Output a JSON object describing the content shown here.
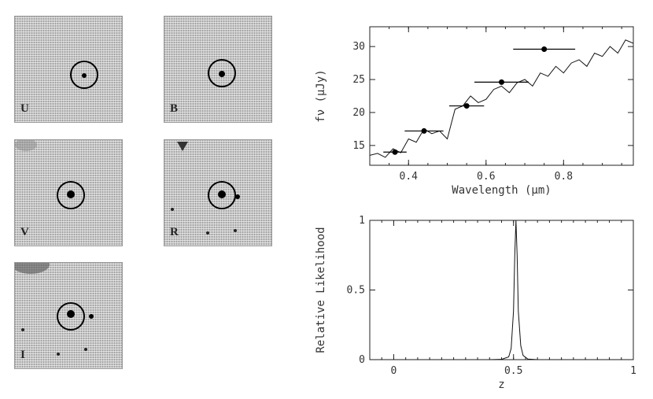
{
  "stamps": [
    {
      "band": "U"
    },
    {
      "band": "B"
    },
    {
      "band": "V"
    },
    {
      "band": "R"
    },
    {
      "band": "I"
    }
  ],
  "chart_data": [
    {
      "type": "line",
      "title": "",
      "xlabel": "Wavelength (μm)",
      "ylabel": "fν (μJy)",
      "xlim": [
        0.3,
        0.98
      ],
      "ylim": [
        12,
        33
      ],
      "xticks": [
        0.4,
        0.6,
        0.8
      ],
      "xtick_labels": [
        "0.4",
        "0.6",
        "0.8"
      ],
      "yticks": [
        15,
        20,
        25,
        30
      ],
      "ytick_labels": [
        "15",
        "20",
        "25",
        "30"
      ],
      "series": [
        {
          "name": "model spectrum",
          "x": [
            0.3,
            0.32,
            0.34,
            0.36,
            0.38,
            0.4,
            0.42,
            0.44,
            0.46,
            0.48,
            0.5,
            0.52,
            0.54,
            0.56,
            0.58,
            0.6,
            0.62,
            0.64,
            0.66,
            0.68,
            0.7,
            0.72,
            0.74,
            0.76,
            0.78,
            0.8,
            0.82,
            0.84,
            0.86,
            0.88,
            0.9,
            0.92,
            0.94,
            0.96,
            0.98
          ],
          "y": [
            13.5,
            13.8,
            13.2,
            14.5,
            13.9,
            16.0,
            15.5,
            17.5,
            16.8,
            17.2,
            16.0,
            20.5,
            21.0,
            22.5,
            21.5,
            22.0,
            23.5,
            24.0,
            23.0,
            24.5,
            25.0,
            24.0,
            26.0,
            25.5,
            27.0,
            26.0,
            27.5,
            28.0,
            27.0,
            29.0,
            28.5,
            30.0,
            29.0,
            31.0,
            30.5
          ]
        },
        {
          "name": "photometry",
          "x": [
            0.365,
            0.44,
            0.55,
            0.64,
            0.75
          ],
          "y": [
            14.0,
            17.2,
            21.0,
            24.6,
            29.6
          ],
          "xerr": [
            0.03,
            0.05,
            0.045,
            0.07,
            0.08
          ]
        }
      ]
    },
    {
      "type": "line",
      "title": "",
      "xlabel": "z",
      "ylabel": "Relative Likelihood",
      "xlim": [
        -0.1,
        1.0
      ],
      "ylim": [
        0,
        1
      ],
      "xticks": [
        0,
        0.5,
        1
      ],
      "xtick_labels": [
        "0",
        "0.5",
        "1"
      ],
      "yticks": [
        0,
        0.5,
        1
      ],
      "ytick_labels": [
        "0",
        "0.5",
        "1"
      ],
      "series": [
        {
          "name": "likelihood",
          "x": [
            -0.1,
            0.4,
            0.45,
            0.48,
            0.49,
            0.5,
            0.505,
            0.51,
            0.515,
            0.52,
            0.53,
            0.54,
            0.56,
            0.6,
            1.0
          ],
          "y": [
            0,
            0,
            0.002,
            0.02,
            0.08,
            0.35,
            0.75,
            1.0,
            0.75,
            0.35,
            0.1,
            0.03,
            0.004,
            0,
            0
          ]
        }
      ]
    }
  ]
}
